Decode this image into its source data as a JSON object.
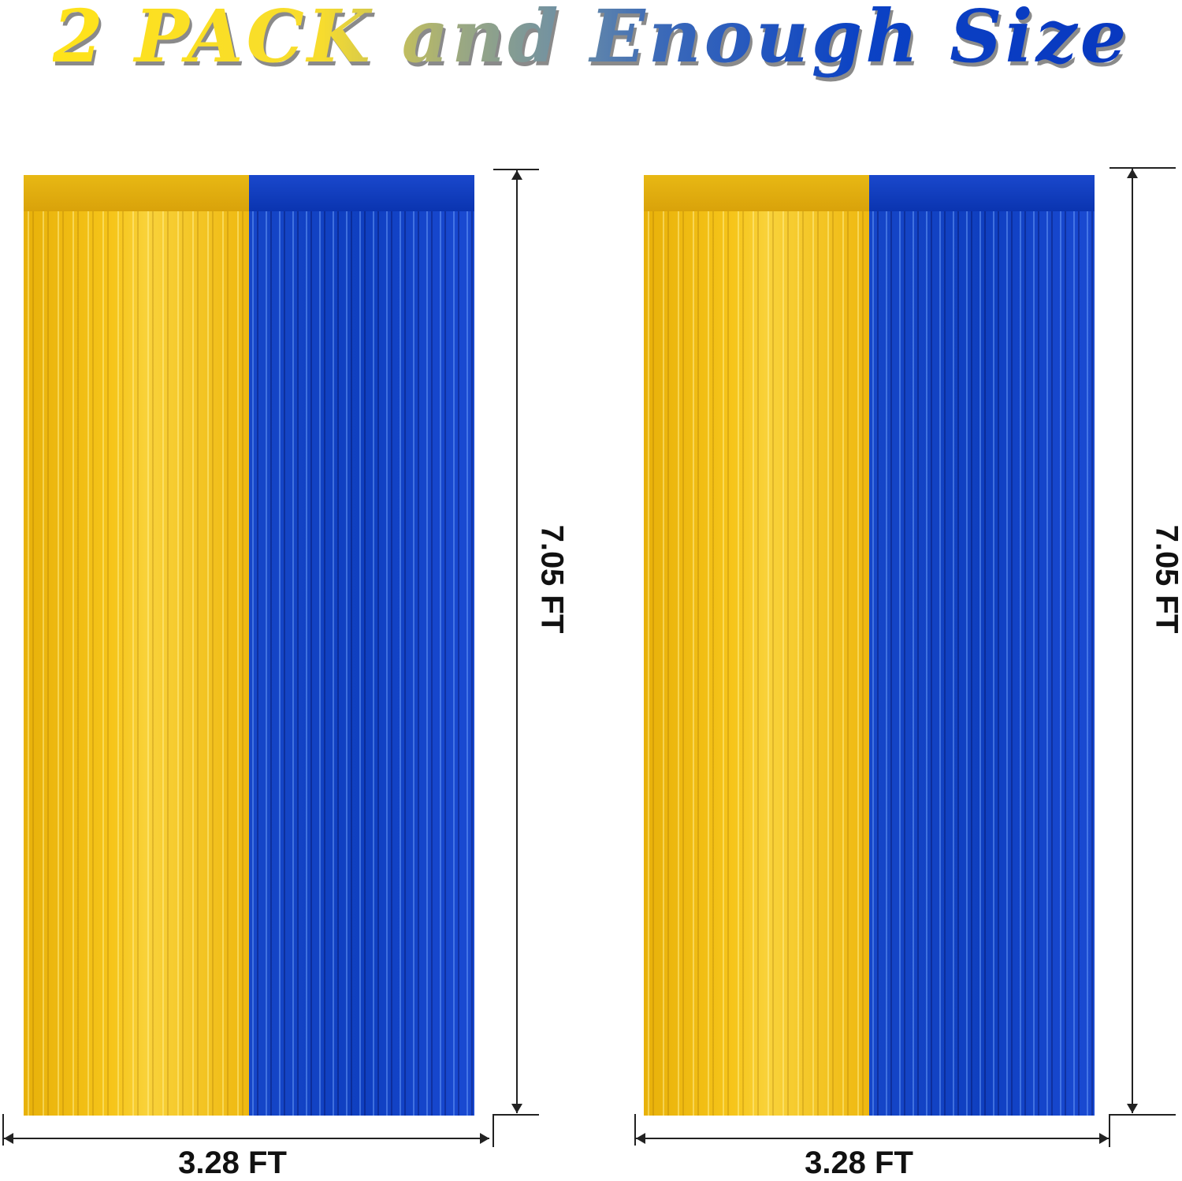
{
  "title": "2 PACK and Enough Size",
  "dimensions": {
    "height_label": "7.05 FT",
    "width_label": "3.28 FT"
  },
  "colors": {
    "gold": "#f6c51a",
    "blue": "#0f3fc0"
  },
  "panels": [
    {
      "colors": [
        "gold",
        "blue"
      ]
    },
    {
      "colors": [
        "gold",
        "blue"
      ]
    }
  ]
}
